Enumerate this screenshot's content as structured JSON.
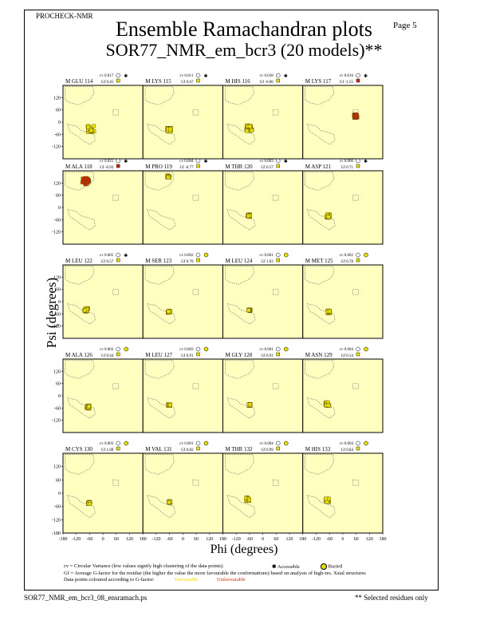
{
  "header": {
    "program": "PROCHECK-NMR",
    "page_label": "Page  5",
    "title_line1": "Ensemble Ramachandran plots",
    "title_line2": "SOR77_NMR_em_bcr3 (20 models)**"
  },
  "chart_data": {
    "type": "scatter",
    "xlabel": "Phi (degrees)",
    "ylabel": "Psi (degrees)",
    "xlim": [
      -180,
      180
    ],
    "ylim": [
      -180,
      180
    ],
    "x_ticks": [
      "-180",
      "-120",
      "-60",
      "0",
      "60",
      "120",
      "180"
    ],
    "y_ticks": [
      "120",
      "60",
      "0",
      "-60",
      "-120"
    ],
    "y_tick_values": [
      120,
      60,
      0,
      -60,
      -120
    ],
    "bottom_y_tick": "-180",
    "background": "#ffffc0",
    "colors": {
      "favourable": "#e8e000",
      "unfavourable": "#cc2a00",
      "region_outline": "#7a7a7a"
    },
    "panels": [
      {
        "label": "M GLU 114",
        "cv": "cv 0.017",
        "gf": "Gf 0.45",
        "flag": "accessible",
        "badge": "yellow",
        "cluster": [
          -55,
          -35
        ],
        "spread": 16,
        "color": "favourable"
      },
      {
        "label": "M LYS 115",
        "cv": "cv 0.011",
        "gf": "Gf 0.67",
        "flag": "accessible",
        "badge": "yellow",
        "cluster": [
          -62,
          -38
        ],
        "spread": 10,
        "color": "favourable"
      },
      {
        "label": "M HIS 116",
        "cv": "cv 0.018",
        "gf": "Gf -0.06",
        "flag": "accessible",
        "badge": "yellow",
        "cluster": [
          -60,
          -30
        ],
        "spread": 14,
        "color": "favourable"
      },
      {
        "label": "M LYS 117",
        "cv": "cv 0.016",
        "gf": "Gf -1.55",
        "flag": "accessible",
        "badge": "red",
        "cluster": [
          60,
          30
        ],
        "spread": 9,
        "color": "unfavourable"
      },
      {
        "label": "M ALA 118",
        "cv": "cv 0.021",
        "gf": "Gf -0.93",
        "flag": "accessible",
        "badge": "red",
        "cluster": [
          -78,
          128
        ],
        "spread": 16,
        "color": "unfavourable"
      },
      {
        "label": "M PRO 119",
        "cv": "cv 0.004",
        "gf": "Gf -0.77",
        "flag": "accessible",
        "badge": "yellow",
        "cluster": [
          -65,
          152
        ],
        "spread": 6,
        "color": "favourable"
      },
      {
        "label": "M THR 120",
        "cv": "cv 0.003",
        "gf": "Gf 0.57",
        "flag": "accessible",
        "badge": "yellow",
        "cluster": [
          -63,
          -40
        ],
        "spread": 6,
        "color": "favourable"
      },
      {
        "label": "M ASP 121",
        "cv": "cv 0.006",
        "gf": "Gf 0.71",
        "flag": "accessible",
        "badge": "yellow",
        "cluster": [
          -65,
          -42
        ],
        "spread": 9,
        "color": "favourable"
      },
      {
        "label": "M LEU 122",
        "cv": "cv 0.005",
        "gf": "Gf 0.57",
        "flag": "accessible",
        "badge": "yellow",
        "cluster": [
          -75,
          -40
        ],
        "spread": 8,
        "color": "favourable"
      },
      {
        "label": "M SER 123",
        "cv": "cv 0.002",
        "gf": "Gf 0.70",
        "flag": "buried",
        "badge": "yellow",
        "cluster": [
          -62,
          -50
        ],
        "spread": 6,
        "color": "favourable"
      },
      {
        "label": "M LEU 124",
        "cv": "cv 0.001",
        "gf": "Gf 1.03",
        "flag": "buried",
        "badge": "yellow",
        "cluster": [
          -60,
          -42
        ],
        "spread": 4,
        "color": "favourable"
      },
      {
        "label": "M MET 125",
        "cv": "cv 0.002",
        "gf": "Gf 0.78",
        "flag": "buried",
        "badge": "yellow",
        "cluster": [
          -62,
          -50
        ],
        "spread": 6,
        "color": "favourable"
      },
      {
        "label": "M ALA 126",
        "cv": "cv 0.003",
        "gf": "Gf 0.44",
        "flag": "buried",
        "badge": "yellow",
        "cluster": [
          -68,
          -55
        ],
        "spread": 7,
        "color": "favourable"
      },
      {
        "label": "M LEU 127",
        "cv": "cv 0.003",
        "gf": "Gf 0.91",
        "flag": "buried",
        "badge": "yellow",
        "cluster": [
          -62,
          -45
        ],
        "spread": 5,
        "color": "favourable"
      },
      {
        "label": "M GLY 128",
        "cv": "cv 0.001",
        "gf": "Gf 0.91",
        "flag": "buried",
        "badge": "yellow",
        "cluster": [
          -60,
          -45
        ],
        "spread": 4,
        "color": "favourable"
      },
      {
        "label": "M ASN 129",
        "cv": "cv 0.004",
        "gf": "Gf 0.34",
        "flag": "buried",
        "badge": "yellow",
        "cluster": [
          -70,
          -40
        ],
        "spread": 9,
        "color": "favourable"
      },
      {
        "label": "M CYS 130",
        "cv": "cv 0.003",
        "gf": "Gf 1.00",
        "flag": "buried",
        "badge": "yellow",
        "cluster": [
          -62,
          -45
        ],
        "spread": 5,
        "color": "favourable"
      },
      {
        "label": "M VAL 131",
        "cv": "cv 0.001",
        "gf": "Gf 0.82",
        "flag": "buried",
        "badge": "yellow",
        "cluster": [
          -60,
          -40
        ],
        "spread": 4,
        "color": "favourable"
      },
      {
        "label": "M THR 132",
        "cv": "cv 0.004",
        "gf": "Gf 0.99",
        "flag": "buried",
        "badge": "yellow",
        "cluster": [
          -68,
          -28
        ],
        "spread": 8,
        "color": "favourable"
      },
      {
        "label": "M HIS 133",
        "cv": "cv 0.004",
        "gf": "Gf 0.84",
        "flag": "buried",
        "badge": "yellow",
        "cluster": [
          -70,
          -32
        ],
        "spread": 8,
        "color": "favourable"
      }
    ]
  },
  "footnotes": {
    "cv_line": "cv = Circular Variance (low values signify high clustering of the data points).",
    "accessible_label": "Accessible",
    "buried_label": "Buried",
    "gf_line": "Gf = Average G-factor for the residue (the higher the value the more favourable the conformations) based on analysis of high-res. Xstal structures",
    "data_line": "Data points coloured according to G-factor:",
    "favourable_label": "Favourable",
    "unfavourable_label": "Unfavourable"
  },
  "footer": {
    "filename": "SOR77_NMR_em_bcr3_08_ensramach.ps",
    "note": "** Selected residues only"
  }
}
